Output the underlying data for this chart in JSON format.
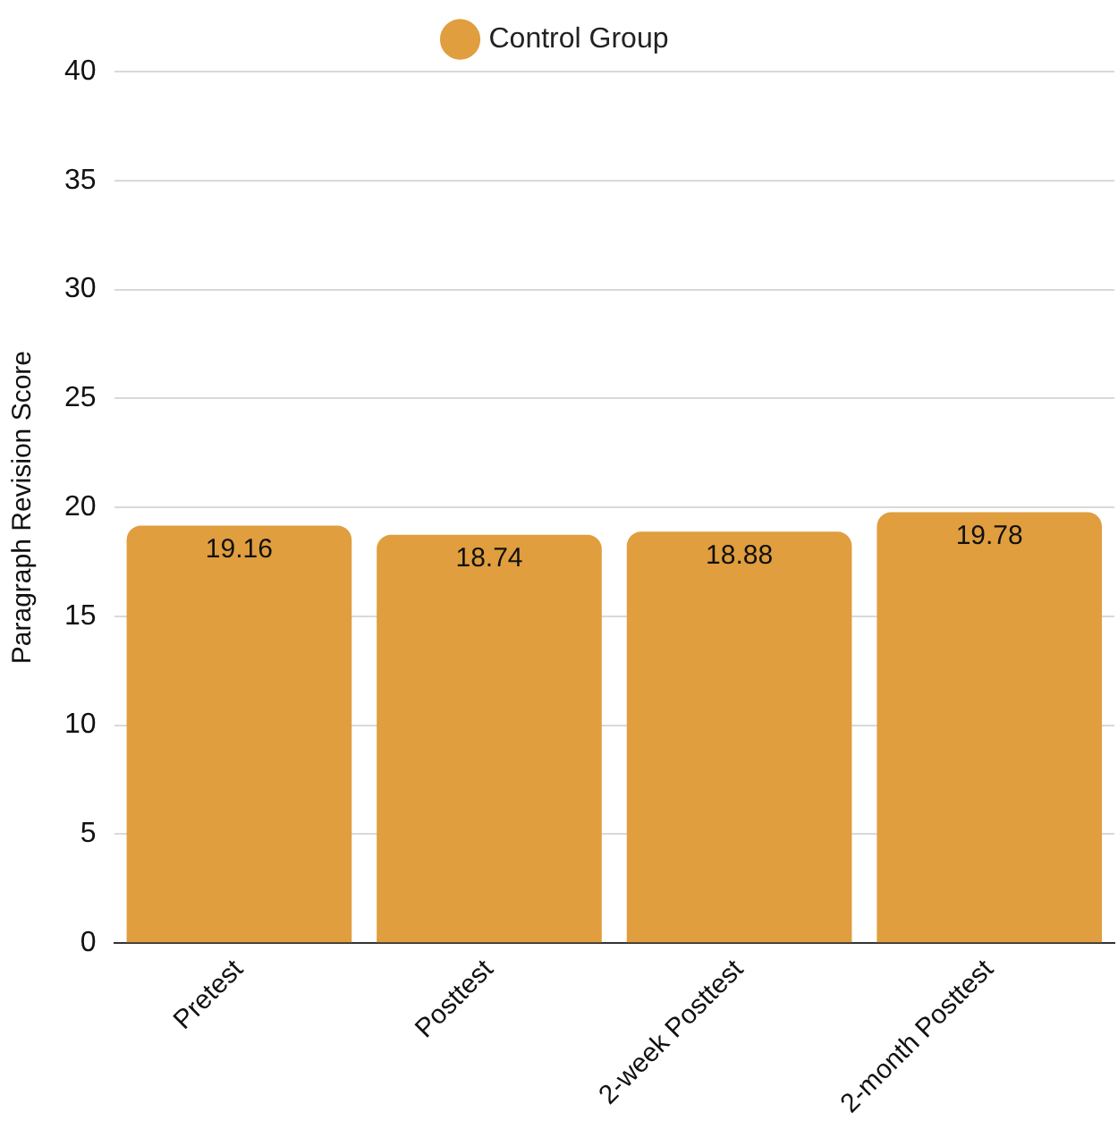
{
  "chart_data": {
    "type": "bar",
    "ylabel": "Paragraph Revision Score",
    "categories": [
      "Pretest",
      "Posttest",
      "2-week Posttest",
      "2-month Posttest"
    ],
    "series": [
      {
        "name": "Control Group",
        "color": "#e09e3e",
        "values": [
          19.16,
          18.74,
          18.88,
          19.78
        ]
      }
    ],
    "ylim": [
      0,
      40
    ],
    "yticks": [
      0,
      5,
      10,
      15,
      20,
      25,
      30,
      35,
      40
    ],
    "grid": "y",
    "legend": "top",
    "data_labels": true
  }
}
